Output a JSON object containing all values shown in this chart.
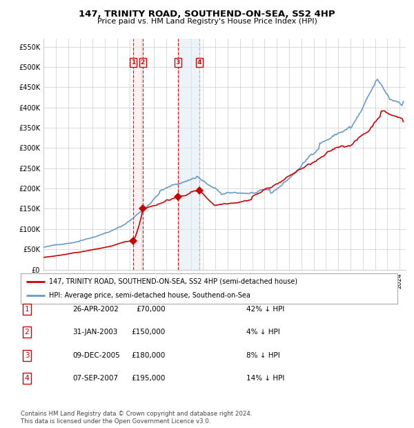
{
  "title": "147, TRINITY ROAD, SOUTHEND-ON-SEA, SS2 4HP",
  "subtitle": "Price paid vs. HM Land Registry's House Price Index (HPI)",
  "red_label": "147, TRINITY ROAD, SOUTHEND-ON-SEA, SS2 4HP (semi-detached house)",
  "blue_label": "HPI: Average price, semi-detached house, Southend-on-Sea",
  "footer": "Contains HM Land Registry data © Crown copyright and database right 2024.\nThis data is licensed under the Open Government Licence v3.0.",
  "transactions": [
    {
      "num": 1,
      "date": "26-APR-2002",
      "price": 70000,
      "year": 2002.32,
      "hpi_pct": "42% ↓ HPI"
    },
    {
      "num": 2,
      "date": "31-JAN-2003",
      "price": 150000,
      "year": 2003.08,
      "hpi_pct": "4% ↓ HPI"
    },
    {
      "num": 3,
      "date": "09-DEC-2005",
      "price": 180000,
      "year": 2005.94,
      "hpi_pct": "8% ↓ HPI"
    },
    {
      "num": 4,
      "date": "07-SEP-2007",
      "price": 195000,
      "year": 2007.69,
      "hpi_pct": "14% ↓ HPI"
    }
  ],
  "vline_pairs": [
    [
      2002.32,
      2003.08
    ],
    [
      2005.94,
      2007.69
    ]
  ],
  "ylim": [
    0,
    570000
  ],
  "xlim_start": 1995.0,
  "xlim_end": 2024.5,
  "red_color": "#cc0000",
  "blue_color": "#6699cc",
  "background_color": "#ffffff",
  "grid_color": "#cccccc",
  "table_rows": [
    [
      "1",
      "26-APR-2002",
      "£70,000",
      "42% ↓ HPI"
    ],
    [
      "2",
      "31-JAN-2003",
      "£150,000",
      "4% ↓ HPI"
    ],
    [
      "3",
      "09-DEC-2005",
      "£180,000",
      "8% ↓ HPI"
    ],
    [
      "4",
      "07-SEP-2007",
      "£195,000",
      "14% ↓ HPI"
    ]
  ]
}
